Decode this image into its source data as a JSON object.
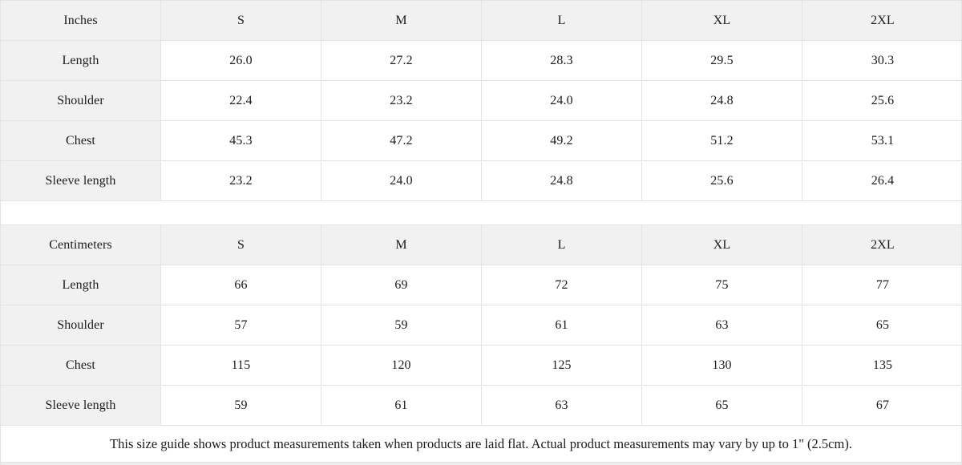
{
  "tables": [
    {
      "unit_label": "Inches",
      "sizes": [
        "S",
        "M",
        "L",
        "XL",
        "2XL"
      ],
      "rows": [
        {
          "label": "Length",
          "values": [
            "26.0",
            "27.2",
            "28.3",
            "29.5",
            "30.3"
          ]
        },
        {
          "label": "Shoulder",
          "values": [
            "22.4",
            "23.2",
            "24.0",
            "24.8",
            "25.6"
          ]
        },
        {
          "label": "Chest",
          "values": [
            "45.3",
            "47.2",
            "49.2",
            "51.2",
            "53.1"
          ]
        },
        {
          "label": "Sleeve length",
          "values": [
            "23.2",
            "24.0",
            "24.8",
            "25.6",
            "26.4"
          ]
        }
      ]
    },
    {
      "unit_label": "Centimeters",
      "sizes": [
        "S",
        "M",
        "L",
        "XL",
        "2XL"
      ],
      "rows": [
        {
          "label": "Length",
          "values": [
            "66",
            "69",
            "72",
            "75",
            "77"
          ]
        },
        {
          "label": "Shoulder",
          "values": [
            "57",
            "59",
            "61",
            "63",
            "65"
          ]
        },
        {
          "label": "Chest",
          "values": [
            "115",
            "120",
            "125",
            "130",
            "135"
          ]
        },
        {
          "label": "Sleeve length",
          "values": [
            "59",
            "61",
            "63",
            "65",
            "67"
          ]
        }
      ]
    }
  ],
  "footer_note": "This size guide shows product measurements taken when products are laid flat.  Actual product measurements may vary by up to 1\" (2.5cm).",
  "colors": {
    "header_bg": "#f1f1f1",
    "border": "#e3e3e3",
    "text": "#1c1c1c"
  }
}
